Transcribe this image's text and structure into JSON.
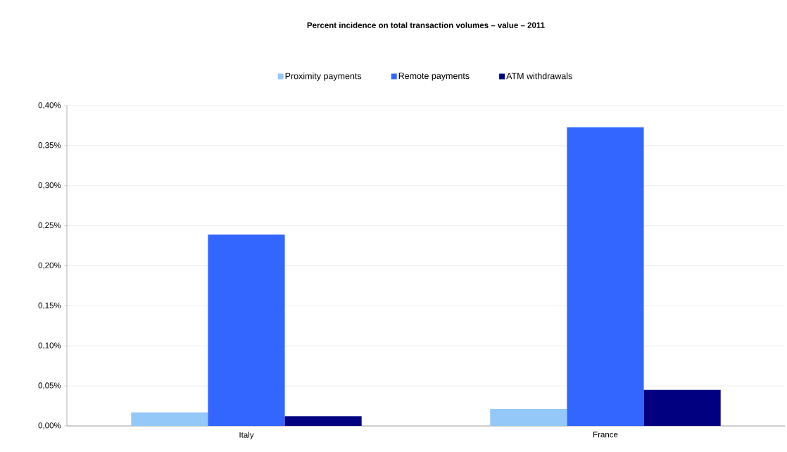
{
  "chart_data": {
    "type": "bar",
    "title": "**Percent incidence on total transaction volumes – value – 2011**",
    "categories": [
      "Italy",
      "France"
    ],
    "series": [
      {
        "name": "Proximity payments",
        "color": "#94c8f8",
        "values": [
          0.017,
          0.021
        ]
      },
      {
        "name": "Remote payments",
        "color": "#3366ff",
        "values": [
          0.239,
          0.373
        ]
      },
      {
        "name": "ATM withdrawals",
        "color": "#000080",
        "values": [
          0.012,
          0.045
        ]
      }
    ],
    "ylim": [
      0,
      0.4
    ],
    "yticks": [
      {
        "value": 0,
        "label": "0,00%"
      },
      {
        "value": 0.05,
        "label": "0,05%"
      },
      {
        "value": 0.1,
        "label": "0,10%"
      },
      {
        "value": 0.15,
        "label": "0,15%"
      },
      {
        "value": 0.2,
        "label": "0,20%"
      },
      {
        "value": 0.25,
        "label": "0,25%"
      },
      {
        "value": 0.3,
        "label": "0,30%"
      },
      {
        "value": 0.35,
        "label": "0,35%"
      },
      {
        "value": 0.4,
        "label": "0,40%"
      }
    ],
    "grid": "y",
    "legend": "top"
  }
}
